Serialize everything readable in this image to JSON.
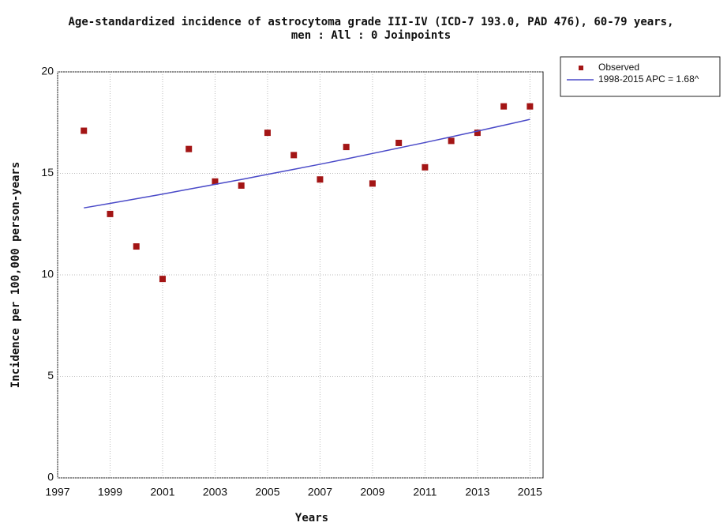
{
  "chart_data": {
    "type": "scatter",
    "title": [
      "Age-standardized incidence of astrocytoma grade III-IV (ICD-7 193.0, PAD 476), 60-79 years,",
      "men : All : 0 Joinpoints"
    ],
    "x_label": "Years",
    "y_label": "Incidence per 100,000 person-years",
    "x": [
      1998,
      1999,
      2000,
      2001,
      2002,
      2003,
      2004,
      2005,
      2006,
      2007,
      2008,
      2009,
      2010,
      2011,
      2012,
      2013,
      2014,
      2015
    ],
    "series": [
      {
        "name": "Observed",
        "type": "scatter",
        "color": "#a31515",
        "values": [
          17.1,
          13.0,
          11.4,
          9.8,
          16.2,
          14.6,
          14.4,
          17.0,
          15.9,
          14.7,
          16.3,
          14.5,
          16.5,
          15.3,
          16.6,
          17.0,
          18.3,
          18.3
        ]
      },
      {
        "name": "1998-2015 APC = 1.68^",
        "type": "line",
        "color": "#4a4ac8",
        "values": [
          13.3,
          13.52,
          13.75,
          13.98,
          14.22,
          14.46,
          14.7,
          14.95,
          15.2,
          15.45,
          15.71,
          15.98,
          16.25,
          16.52,
          16.8,
          17.08,
          17.37,
          17.66
        ]
      }
    ],
    "xlim": [
      1997,
      2015.5
    ],
    "xticks": [
      1997,
      1999,
      2001,
      2003,
      2005,
      2007,
      2009,
      2011,
      2013,
      2015
    ],
    "ylim": [
      0,
      20
    ],
    "yticks": [
      0,
      5,
      10,
      15,
      20
    ],
    "grid": true,
    "legend": "outside-top-right"
  }
}
